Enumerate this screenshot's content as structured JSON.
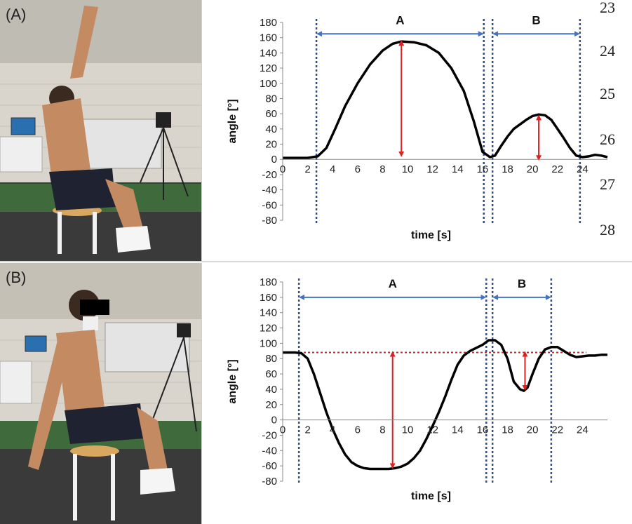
{
  "panels": [
    {
      "label": "(A)",
      "line_numbers": [
        "23",
        "24",
        "25",
        "26",
        "27",
        "28"
      ]
    },
    {
      "label": "(B)",
      "line_numbers": []
    }
  ],
  "chart_data": [
    {
      "type": "line",
      "xlabel": "time [s]",
      "ylabel": "angle [°]",
      "xlim": [
        0,
        26
      ],
      "ylim": [
        -80,
        180
      ],
      "xticks": [
        "0",
        "2",
        "4",
        "6",
        "8",
        "10",
        "12",
        "14",
        "16",
        "18",
        "20",
        "22",
        "24"
      ],
      "yticks": [
        "180",
        "160",
        "140",
        "120",
        "100",
        "80",
        "60",
        "40",
        "20",
        "0",
        "-20",
        "-40",
        "-60",
        "-80"
      ],
      "series": [
        {
          "x": [
            0,
            1,
            2,
            2.8,
            3.5,
            4.2,
            5,
            6,
            7,
            8,
            8.8,
            9.5,
            10.5,
            11.5,
            12.5,
            13.5,
            14.5,
            15.3,
            16,
            16.6,
            17,
            17.5,
            18,
            18.5,
            19,
            19.5,
            20,
            20.5,
            21,
            21.5,
            22,
            22.5,
            23,
            23.5,
            24,
            24.5,
            25,
            25.5,
            26
          ],
          "values": [
            2,
            2,
            2,
            4,
            15,
            40,
            70,
            100,
            125,
            143,
            152,
            155,
            154,
            150,
            140,
            120,
            90,
            50,
            10,
            3,
            5,
            18,
            30,
            40,
            46,
            52,
            57,
            59,
            58,
            52,
            40,
            28,
            15,
            5,
            3,
            4,
            6,
            5,
            3
          ]
        }
      ],
      "vlines": [
        2.7,
        16.1,
        16.8,
        23.8
      ],
      "segments": [
        {
          "label": "A",
          "x0": 2.7,
          "x1": 16.1,
          "y": 165
        },
        {
          "label": "B",
          "x0": 16.8,
          "x1": 23.8,
          "y": 165
        }
      ],
      "amplitude_arrows": [
        {
          "x": 9.5,
          "y0": 5,
          "y1": 155
        },
        {
          "x": 20.5,
          "y0": 0,
          "y1": 57
        }
      ],
      "colors": {
        "curve": "#000000",
        "span_arrow": "#4472C4",
        "vline": "#2F4F8F",
        "amp_arrow": "#E02020"
      }
    },
    {
      "type": "line",
      "xlabel": "time [s]",
      "ylabel": "angle [°]",
      "xlim": [
        0,
        26
      ],
      "ylim": [
        -80,
        180
      ],
      "xticks": [
        "0",
        "2",
        "4",
        "6",
        "8",
        "10",
        "12",
        "14",
        "16",
        "18",
        "20",
        "22",
        "24"
      ],
      "yticks": [
        "180",
        "160",
        "140",
        "120",
        "100",
        "80",
        "60",
        "40",
        "20",
        "0",
        "-20",
        "-40",
        "-60",
        "-80"
      ],
      "series": [
        {
          "x": [
            0,
            0.5,
            1,
            1.5,
            2,
            2.5,
            3,
            3.5,
            4,
            4.5,
            5,
            5.5,
            6,
            6.5,
            7,
            7.5,
            8,
            8.5,
            9,
            9.5,
            10,
            10.5,
            11,
            11.5,
            12,
            12.5,
            13,
            13.5,
            14,
            14.5,
            15,
            15.5,
            16,
            16.5,
            17,
            17.5,
            18,
            18.5,
            19,
            19.3,
            19.6,
            20,
            20.5,
            21,
            21.5,
            22,
            22.5,
            23,
            23.5,
            24,
            24.5,
            25,
            25.5,
            26
          ],
          "values": [
            88,
            88,
            88,
            87,
            80,
            60,
            35,
            10,
            -12,
            -30,
            -45,
            -55,
            -60,
            -63,
            -64,
            -64,
            -64,
            -64,
            -63,
            -61,
            -57,
            -50,
            -40,
            -25,
            -8,
            10,
            30,
            52,
            72,
            84,
            90,
            94,
            98,
            104,
            104,
            98,
            80,
            50,
            40,
            38,
            42,
            60,
            80,
            92,
            95,
            95,
            90,
            85,
            82,
            83,
            84,
            84,
            85,
            85
          ]
        }
      ],
      "reference_line": 88,
      "vlines": [
        1.3,
        16.3,
        16.8,
        21.5
      ],
      "segments": [
        {
          "label": "A",
          "x0": 1.3,
          "x1": 16.3,
          "y": 160
        },
        {
          "label": "B",
          "x0": 16.8,
          "x1": 21.5,
          "y": 160
        }
      ],
      "amplitude_arrows": [
        {
          "x": 8.8,
          "y0": -62,
          "y1": 88
        },
        {
          "x": 19.4,
          "y0": 40,
          "y1": 88
        }
      ],
      "colors": {
        "curve": "#000000",
        "span_arrow": "#4472C4",
        "vline": "#2F4F8F",
        "amp_arrow": "#E02020",
        "reference": "#E02020"
      }
    }
  ]
}
